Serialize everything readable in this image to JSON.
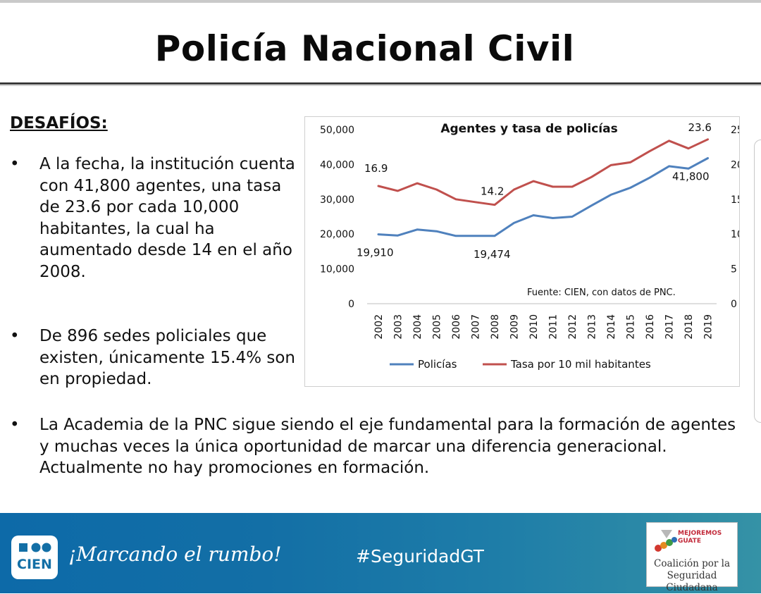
{
  "slide": {
    "title": "Policía Nacional Civil",
    "heading": "DESAFÍOS:",
    "bullet_marker": "•",
    "bullets": [
      "A la fecha, la institución cuenta con 41,800 agentes, una tasa de 23.6 por cada 10,000 habitantes, la cual ha aumentado desde 14 en el año 2008.",
      "De 896 sedes policiales que existen, únicamente 15.4% son en propiedad.",
      "La Academia de la PNC sigue siendo el eje fundamental para la formación de agentes y muchas veces la única oportunidad de marcar una diferencia generacional. Actualmente no hay promociones en formación."
    ]
  },
  "chart_data": {
    "type": "line",
    "title": "Agentes y tasa de policías",
    "source_note": "Fuente: CIEN, con datos de PNC.",
    "x": [
      "2002",
      "2003",
      "2004",
      "2005",
      "2006",
      "2007",
      "2008",
      "2009",
      "2010",
      "2011",
      "2012",
      "2013",
      "2014",
      "2015",
      "2016",
      "2017",
      "2018",
      "2019"
    ],
    "y_left": {
      "range": [
        0,
        50000
      ],
      "ticks": [
        "0",
        "10,000",
        "20,000",
        "30,000",
        "40,000",
        "50,000"
      ]
    },
    "y_right": {
      "range": [
        0,
        25
      ],
      "ticks": [
        "0",
        "5",
        "10",
        "15",
        "20",
        "25"
      ]
    },
    "series": [
      {
        "name": "Policías",
        "axis": "left",
        "color": "#4f81bd",
        "values": [
          19910,
          19600,
          21300,
          20800,
          19474,
          19474,
          19474,
          23200,
          25400,
          24600,
          25000,
          28200,
          31300,
          33300,
          36200,
          39500,
          38800,
          41800
        ]
      },
      {
        "name": "Tasa por 10 mil habitantes",
        "axis": "right",
        "color": "#c0504d",
        "values": [
          16.9,
          16.2,
          17.3,
          16.4,
          15.0,
          14.6,
          14.2,
          16.4,
          17.6,
          16.8,
          16.8,
          18.2,
          19.9,
          20.3,
          21.9,
          23.4,
          22.3,
          23.6
        ]
      }
    ],
    "annotations": [
      {
        "series": 1,
        "index": 0,
        "text": "16.9"
      },
      {
        "series": 1,
        "index": 6,
        "text": "14.2"
      },
      {
        "series": 1,
        "index": 17,
        "text": "23.6"
      },
      {
        "series": 0,
        "index": 0,
        "text": "19,910"
      },
      {
        "series": 0,
        "index": 6,
        "text": "19,474"
      },
      {
        "series": 0,
        "index": 17,
        "text": "41,800"
      }
    ]
  },
  "footer": {
    "logo_text": "CIEN",
    "slogan": "¡Marcando el rumbo!",
    "hashtag": "#SeguridadGT",
    "partner_brand_line1": "MEJOREMOS",
    "partner_brand_line2": "GUATE",
    "partner_line1": "Coalición por la",
    "partner_line2": "Seguridad Ciudadana"
  },
  "colors": {
    "footer_blue": "#136fa6",
    "blue_series": "#4f81bd",
    "red_series": "#c0504d"
  }
}
